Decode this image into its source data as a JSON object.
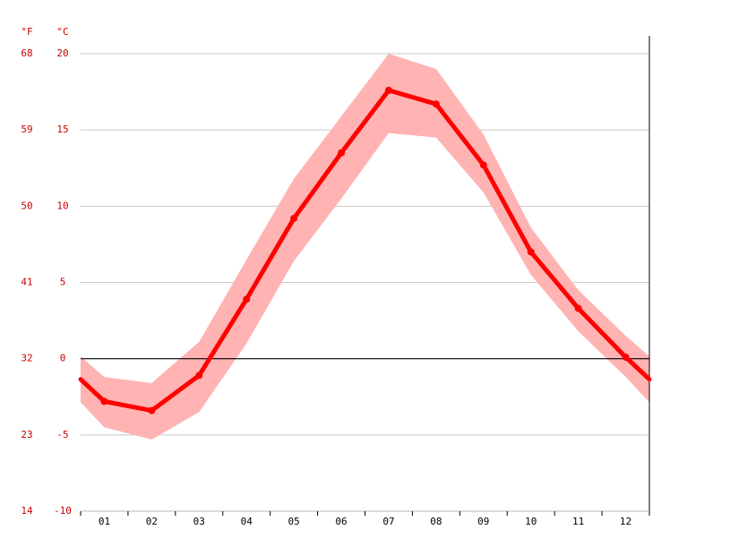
{
  "chart_data": {
    "type": "line",
    "ylabel": "°C",
    "y2label": "°F",
    "categories": [
      "01",
      "02",
      "03",
      "04",
      "05",
      "06",
      "07",
      "08",
      "09",
      "10",
      "11",
      "12"
    ],
    "series": [
      {
        "color": "#ff0000",
        "values": [
          -2.8,
          -3.4,
          -1.1,
          3.9,
          9.2,
          13.5,
          17.6,
          16.7,
          12.7,
          7.0,
          3.3,
          0.1
        ]
      }
    ],
    "band": {
      "color": "#ffb3b3",
      "high": [
        -1.2,
        -1.6,
        1.1,
        6.5,
        11.8,
        15.9,
        20.0,
        19.0,
        14.7,
        8.6,
        4.5,
        1.5
      ],
      "low": [
        -4.5,
        -5.3,
        -3.5,
        1.0,
        6.4,
        10.5,
        14.8,
        14.5,
        10.9,
        5.5,
        1.8,
        -1.2
      ]
    },
    "ylim": [
      -10,
      20
    ],
    "yticks": [
      -10,
      -5,
      0,
      5,
      10,
      15,
      20
    ],
    "y2lim": [
      14,
      68
    ],
    "y2ticks": [
      14,
      23,
      32,
      41,
      50,
      59,
      68
    ],
    "grid": true
  }
}
